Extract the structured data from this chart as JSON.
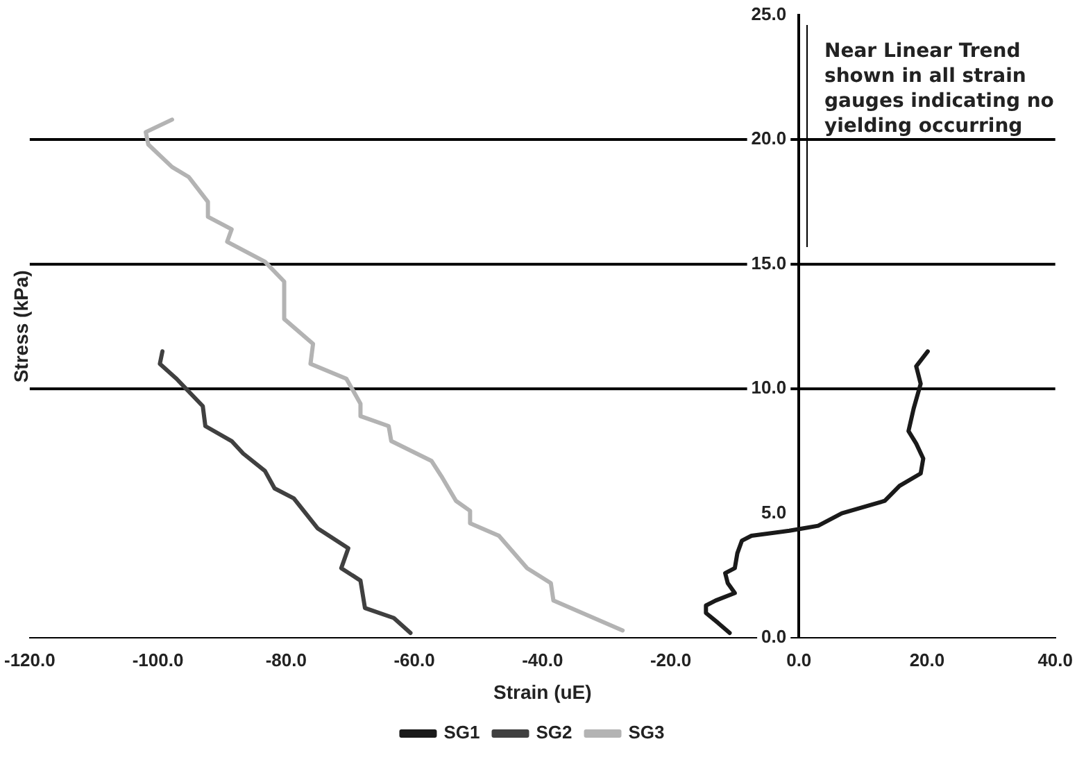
{
  "chart_data": {
    "type": "line",
    "xlabel": "Strain (uE)",
    "ylabel": "Stress (kPa)",
    "xlim": [
      -120,
      40
    ],
    "ylim": [
      0,
      25
    ],
    "xticks": [
      {
        "value": -120,
        "label": "-120.0"
      },
      {
        "value": -100,
        "label": "-100.0"
      },
      {
        "value": -80,
        "label": "-80.0"
      },
      {
        "value": -60,
        "label": "-60.0"
      },
      {
        "value": -40,
        "label": "-40.0"
      },
      {
        "value": -20,
        "label": "-20.0"
      },
      {
        "value": 0,
        "label": "0.0"
      },
      {
        "value": 20,
        "label": "20.0"
      },
      {
        "value": 40,
        "label": "40.0"
      }
    ],
    "yticks": [
      {
        "value": 0,
        "label": "0.0"
      },
      {
        "value": 5,
        "label": "5.0"
      },
      {
        "value": 10,
        "label": "10.0"
      },
      {
        "value": 15,
        "label": "15.0"
      },
      {
        "value": 20,
        "label": "20.0"
      },
      {
        "value": 25,
        "label": "25.0"
      }
    ],
    "series": [
      {
        "name": "SG1",
        "color": "#1a1a1a",
        "x": [
          -10.8,
          -12.6,
          -14.5,
          -14.5,
          -13.0,
          -10.0,
          -11.1,
          -11.5,
          -10.0,
          -9.6,
          -8.9,
          -7.4,
          -1.5,
          3.0,
          6.7,
          13.4,
          15.7,
          19.0,
          19.4,
          18.3,
          17.1,
          17.9,
          19.0,
          18.3,
          20.1
        ],
        "values": [
          0.2,
          0.6,
          1.0,
          1.3,
          1.5,
          1.8,
          2.2,
          2.6,
          2.8,
          3.4,
          3.9,
          4.1,
          4.3,
          4.5,
          5.0,
          5.5,
          6.1,
          6.6,
          7.2,
          7.8,
          8.3,
          9.2,
          10.2,
          10.9,
          11.5
        ]
      },
      {
        "name": "SG2",
        "color": "#404040",
        "x": [
          -60.6,
          -63.2,
          -67.7,
          -68.4,
          -71.4,
          -70.3,
          -75.1,
          -78.8,
          -81.8,
          -83.3,
          -86.7,
          -88.5,
          -92.6,
          -93.0,
          -97.1,
          -99.7,
          -99.3
        ],
        "values": [
          0.2,
          0.8,
          1.2,
          2.3,
          2.8,
          3.6,
          4.4,
          5.6,
          6.0,
          6.7,
          7.4,
          7.9,
          8.5,
          9.3,
          10.4,
          11.0,
          11.5
        ]
      },
      {
        "name": "SG3",
        "color": "#b3b3b3",
        "x": [
          -27.5,
          -38.3,
          -38.7,
          -42.4,
          -46.8,
          -51.3,
          -51.3,
          -53.5,
          -55.8,
          -57.3,
          -63.6,
          -64.0,
          -68.4,
          -68.4,
          -70.6,
          -76.2,
          -75.8,
          -80.3,
          -80.3,
          -83.3,
          -89.2,
          -88.5,
          -92.2,
          -92.2,
          -95.2,
          -97.8,
          -101.5,
          -101.9,
          -97.8
        ],
        "values": [
          0.3,
          1.5,
          2.2,
          2.8,
          4.1,
          4.6,
          5.1,
          5.5,
          6.5,
          7.1,
          7.9,
          8.5,
          8.9,
          9.4,
          10.4,
          11.0,
          11.8,
          12.8,
          14.3,
          15.1,
          15.9,
          16.4,
          16.9,
          17.5,
          18.5,
          18.9,
          19.8,
          20.3,
          20.8
        ]
      }
    ],
    "ref_lines": [
      {
        "axis": "y",
        "value": 10,
        "color": "#000000"
      },
      {
        "axis": "y",
        "value": 15,
        "color": "#000000"
      },
      {
        "axis": "y",
        "value": 20,
        "color": "#000000"
      }
    ],
    "annotations": [
      "Near Linear Trend shown in all strain gauges indicating no yielding occurring"
    ],
    "legend": "bottom",
    "marker": "none",
    "line_style": "solid"
  }
}
